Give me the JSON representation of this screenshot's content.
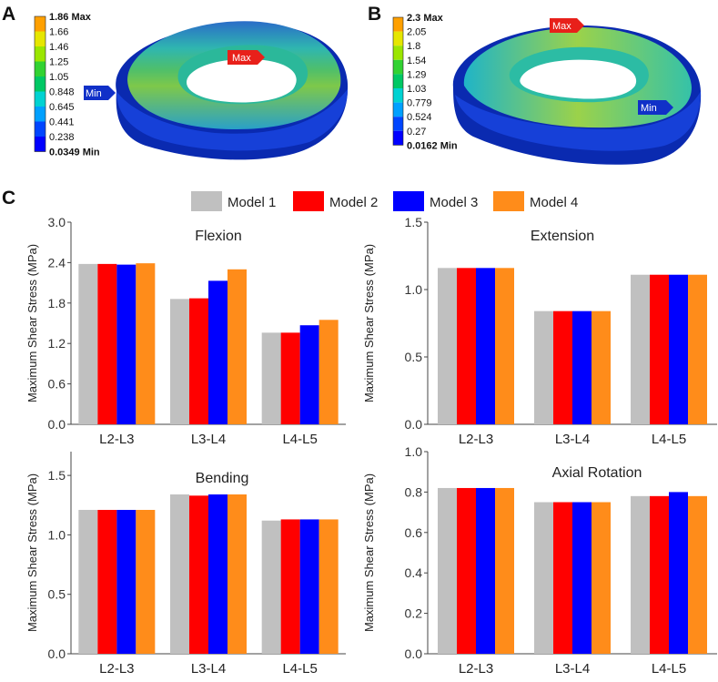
{
  "panel_labels": {
    "a": "A",
    "b": "B",
    "c": "C"
  },
  "contour_a": {
    "levels": [
      "1.86 Max",
      "1.66",
      "1.46",
      "1.25",
      "1.05",
      "0.848",
      "0.645",
      "0.441",
      "0.238",
      "0.0349 Min"
    ],
    "max_tag": "Max",
    "min_tag": "Min"
  },
  "contour_b": {
    "levels": [
      "2.3 Max",
      "2.05",
      "1.8",
      "1.54",
      "1.29",
      "1.03",
      "0.779",
      "0.524",
      "0.27",
      "0.0162 Min"
    ],
    "max_tag": "Max",
    "min_tag": "Min"
  },
  "legend_colors": [
    "#0000ff",
    "#0045ff",
    "#00a0ff",
    "#00d2d2",
    "#00c864",
    "#32d232",
    "#9be600",
    "#e6e600",
    "#ffa000",
    "#ff0000"
  ],
  "model_colors": {
    "model1": "#c0c0c0",
    "model2": "#ff0000",
    "model3": "#0000ff",
    "model4": "#ff8c1a"
  },
  "legend": [
    "Model 1",
    "Model 2",
    "Model 3",
    "Model 4"
  ],
  "chart_data": [
    {
      "type": "bar",
      "title": "Flexion",
      "categories": [
        "L2-L3",
        "L3-L4",
        "L4-L5"
      ],
      "series": [
        {
          "name": "Model 1",
          "values": [
            2.38,
            1.86,
            1.36
          ]
        },
        {
          "name": "Model 2",
          "values": [
            2.38,
            1.87,
            1.36
          ]
        },
        {
          "name": "Model 3",
          "values": [
            2.37,
            2.13,
            1.47
          ]
        },
        {
          "name": "Model 4",
          "values": [
            2.39,
            2.3,
            1.55
          ]
        }
      ],
      "ylabel": "Maximum Shear Stress (MPa)",
      "ylim": [
        0,
        3.0
      ],
      "yticks": [
        "0.0",
        "0.6",
        "1.2",
        "1.8",
        "2.4",
        "3.0"
      ]
    },
    {
      "type": "bar",
      "title": "Extension",
      "categories": [
        "L2-L3",
        "L3-L4",
        "L4-L5"
      ],
      "series": [
        {
          "name": "Model 1",
          "values": [
            1.16,
            0.84,
            1.11
          ]
        },
        {
          "name": "Model 2",
          "values": [
            1.16,
            0.84,
            1.11
          ]
        },
        {
          "name": "Model 3",
          "values": [
            1.16,
            0.84,
            1.11
          ]
        },
        {
          "name": "Model 4",
          "values": [
            1.16,
            0.84,
            1.11
          ]
        }
      ],
      "ylabel": "Maximum Shear Stress (MPa)",
      "ylim": [
        0,
        1.5
      ],
      "yticks": [
        "0.0",
        "0.5",
        "1.0",
        "1.5"
      ]
    },
    {
      "type": "bar",
      "title": "Bending",
      "categories": [
        "L2-L3",
        "L3-L4",
        "L4-L5"
      ],
      "series": [
        {
          "name": "Model 1",
          "values": [
            1.21,
            1.34,
            1.12
          ]
        },
        {
          "name": "Model 2",
          "values": [
            1.21,
            1.33,
            1.13
          ]
        },
        {
          "name": "Model 3",
          "values": [
            1.21,
            1.34,
            1.13
          ]
        },
        {
          "name": "Model 4",
          "values": [
            1.21,
            1.34,
            1.13
          ]
        }
      ],
      "ylabel": "Maximum Shear Stress (MPa)",
      "ylim": [
        0,
        1.7
      ],
      "yticks": [
        "0.0",
        "0.5",
        "1.0",
        "1.5"
      ]
    },
    {
      "type": "bar",
      "title": "Axial Rotation",
      "categories": [
        "L2-L3",
        "L3-L4",
        "L4-L5"
      ],
      "series": [
        {
          "name": "Model 1",
          "values": [
            0.82,
            0.75,
            0.78
          ]
        },
        {
          "name": "Model 2",
          "values": [
            0.82,
            0.75,
            0.78
          ]
        },
        {
          "name": "Model 3",
          "values": [
            0.82,
            0.75,
            0.8
          ]
        },
        {
          "name": "Model 4",
          "values": [
            0.82,
            0.75,
            0.78
          ]
        }
      ],
      "ylabel": "Maximum Shear Stress (MPa)",
      "ylim": [
        0,
        1.0
      ],
      "yticks": [
        "0.0",
        "0.2",
        "0.4",
        "0.6",
        "0.8",
        "1.0"
      ]
    }
  ]
}
